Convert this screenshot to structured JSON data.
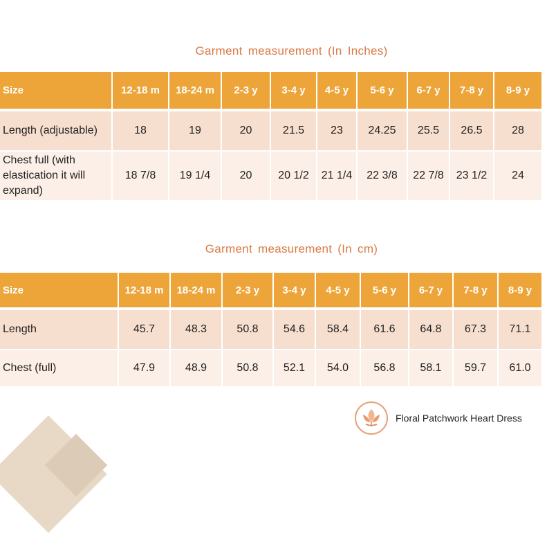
{
  "inches": {
    "title": "Garment measurement  (In Inches)",
    "header": [
      "Size",
      "12-18 m",
      "18-24 m",
      "2-3 y",
      "3-4 y",
      "4-5 y",
      "5-6 y",
      "6-7 y",
      "7-8 y",
      "8-9 y"
    ],
    "rows": [
      [
        "Length (adjustable)",
        "18",
        "19",
        "20",
        "21.5",
        "23",
        "24.25",
        "25.5",
        "26.5",
        "28"
      ],
      [
        "Chest full (with elastication it will expand)",
        "18 7/8",
        "19 1/4",
        "20",
        "20 1/2",
        "21 1/4",
        "22 3/8",
        "22 7/8",
        "23 1/2",
        "24"
      ]
    ]
  },
  "cm": {
    "title": "Garment  measurement  (In cm)",
    "header": [
      "Size",
      "12-18 m",
      "18-24 m",
      "2-3 y",
      "3-4 y",
      "4-5 y",
      "5-6 y",
      "6-7 y",
      "7-8 y",
      "8-9 y"
    ],
    "rows": [
      [
        "Length",
        "45.7",
        "48.3",
        "50.8",
        "54.6",
        "58.4",
        "61.6",
        "64.8",
        "67.3",
        "71.1"
      ],
      [
        "Chest (full)",
        "47.9",
        "48.9",
        "50.8",
        "52.1",
        "54.0",
        "56.8",
        "58.1",
        "59.7",
        "61.0"
      ]
    ]
  },
  "brand": {
    "name": "Floral Patchwork Heart Dress",
    "logo_icon": "leaf-logo-icon",
    "accent_color": "#eda53a"
  }
}
